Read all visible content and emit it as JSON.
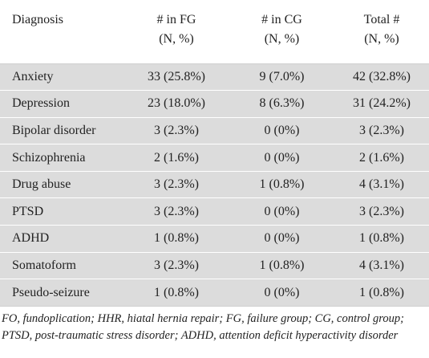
{
  "table": {
    "headers": [
      {
        "line1": "Diagnosis",
        "line2": ""
      },
      {
        "line1": "# in FG",
        "line2": "(N, %)"
      },
      {
        "line1": "# in CG",
        "line2": "(N, %)"
      },
      {
        "line1": "Total #",
        "line2": "(N, %)"
      }
    ],
    "rows": [
      {
        "diagnosis": "Anxiety",
        "fg": "33 (25.8%)",
        "cg": "9 (7.0%)",
        "total": "42 (32.8%)"
      },
      {
        "diagnosis": "Depression",
        "fg": "23 (18.0%)",
        "cg": "8 (6.3%)",
        "total": "31 (24.2%)"
      },
      {
        "diagnosis": "Bipolar disorder",
        "fg": "3 (2.3%)",
        "cg": "0 (0%)",
        "total": "3 (2.3%)"
      },
      {
        "diagnosis": "Schizophrenia",
        "fg": "2 (1.6%)",
        "cg": "0 (0%)",
        "total": "2 (1.6%)"
      },
      {
        "diagnosis": "Drug abuse",
        "fg": "3 (2.3%)",
        "cg": "1 (0.8%)",
        "total": "4 (3.1%)"
      },
      {
        "diagnosis": "PTSD",
        "fg": "3 (2.3%)",
        "cg": "0 (0%)",
        "total": "3 (2.3%)"
      },
      {
        "diagnosis": "ADHD",
        "fg": "1 (0.8%)",
        "cg": "0 (0%)",
        "total": "1 (0.8%)"
      },
      {
        "diagnosis": "Somatoform",
        "fg": "3 (2.3%)",
        "cg": "1 (0.8%)",
        "total": "4 (3.1%)"
      },
      {
        "diagnosis": "Pseudo-seizure",
        "fg": "1 (0.8%)",
        "cg": "0 (0%)",
        "total": "1 (0.8%)"
      }
    ]
  },
  "footnote": "FO, fundoplication; HHR, hiatal hernia repair; FG, failure group; CG, control group; PTSD, post-traumatic stress disorder; ADHD, attention deficit hyperactivity disorder",
  "colors": {
    "shaded_row": "#dcdcdc",
    "rule": "#cfcfcf",
    "text": "#222222"
  }
}
